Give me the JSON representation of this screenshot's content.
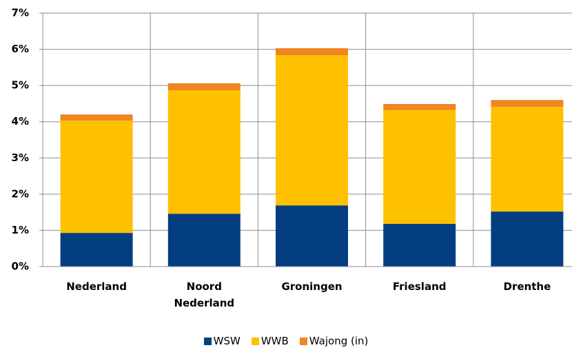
{
  "chart_data": {
    "type": "stacked-bar",
    "categories": [
      "Nederland",
      "Noord Nederland",
      "Groningen",
      "Friesland",
      "Drenthe"
    ],
    "series": [
      {
        "name": "WSW",
        "color": "#033f80",
        "values": [
          0.93,
          1.46,
          1.69,
          1.18,
          1.52
        ]
      },
      {
        "name": "WWB",
        "color": "#ffc000",
        "values": [
          3.1,
          3.41,
          4.15,
          3.14,
          2.89
        ]
      },
      {
        "name": "Wajong (in)",
        "color": "#f08522",
        "values": [
          0.17,
          0.19,
          0.19,
          0.17,
          0.19
        ]
      }
    ],
    "ylim": [
      0,
      7
    ],
    "yticks": [
      {
        "value": 0,
        "label": "0%"
      },
      {
        "value": 1,
        "label": "1%"
      },
      {
        "value": 2,
        "label": "2%"
      },
      {
        "value": 3,
        "label": "3%"
      },
      {
        "value": 4,
        "label": "4%"
      },
      {
        "value": 5,
        "label": "5%"
      },
      {
        "value": 6,
        "label": "6%"
      },
      {
        "value": 7,
        "label": "7%"
      }
    ],
    "grid": true
  }
}
